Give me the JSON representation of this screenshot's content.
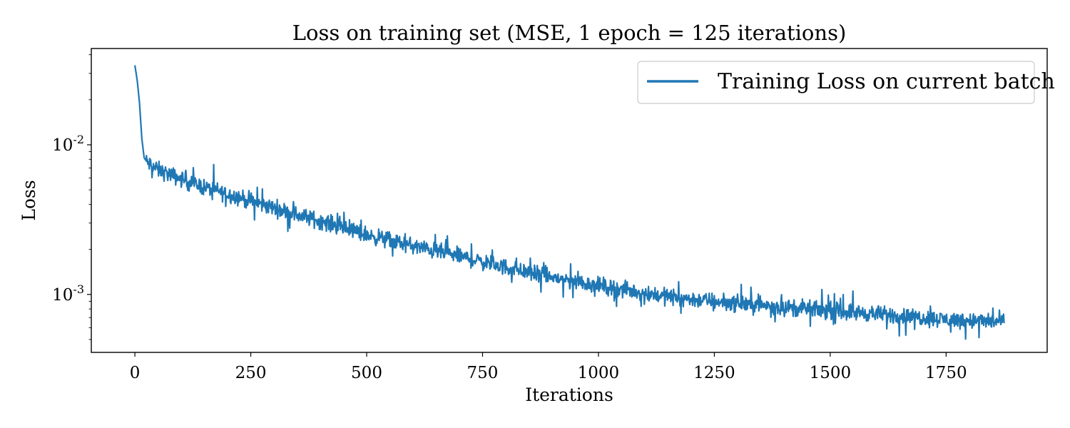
{
  "chart_data": {
    "type": "line",
    "title": "Loss on training set   (MSE, 1 epoch = 125 iterations)",
    "xlabel": "Iterations",
    "ylabel": "Loss",
    "xscale": "linear",
    "yscale": "log",
    "xlim": [
      -94,
      1968
    ],
    "ylim": [
      0.00041,
      0.044
    ],
    "grid": false,
    "legend_position": "top-right",
    "xticks": [
      {
        "value": 0,
        "label": "0"
      },
      {
        "value": 250,
        "label": "250"
      },
      {
        "value": 500,
        "label": "500"
      },
      {
        "value": 750,
        "label": "750"
      },
      {
        "value": 1000,
        "label": "1000"
      },
      {
        "value": 1250,
        "label": "1250"
      },
      {
        "value": 1500,
        "label": "1500"
      },
      {
        "value": 1750,
        "label": "1750"
      }
    ],
    "yticks": [
      {
        "value": 0.01,
        "base": "10",
        "exp": "-2"
      },
      {
        "value": 0.001,
        "base": "10",
        "exp": "-3"
      }
    ],
    "y_minor_ticks": [
      0.0005,
      0.0006,
      0.0007,
      0.0008,
      0.0009,
      0.002,
      0.003,
      0.004,
      0.005,
      0.006,
      0.007,
      0.008,
      0.009,
      0.02,
      0.03,
      0.04
    ],
    "series": [
      {
        "name": "Training Loss on current batch",
        "color": "#1f77b4",
        "x": [
          0,
          5,
          10,
          15,
          20,
          25,
          50,
          100,
          150,
          200,
          250,
          300,
          350,
          400,
          450,
          500,
          550,
          600,
          650,
          700,
          750,
          800,
          850,
          900,
          950,
          1000,
          1050,
          1100,
          1150,
          1200,
          1250,
          1300,
          1350,
          1400,
          1450,
          1500,
          1550,
          1600,
          1650,
          1700,
          1750,
          1800,
          1850,
          1875
        ],
        "y": [
          0.034,
          0.027,
          0.019,
          0.011,
          0.0082,
          0.0077,
          0.0068,
          0.0059,
          0.0052,
          0.0047,
          0.0042,
          0.0038,
          0.0034,
          0.0031,
          0.0028,
          0.0025,
          0.0023,
          0.0021,
          0.00195,
          0.0018,
          0.00165,
          0.00152,
          0.0014,
          0.0013,
          0.00122,
          0.00115,
          0.00108,
          0.00102,
          0.00097,
          0.00093,
          0.0009,
          0.00087,
          0.00085,
          0.00082,
          0.0008,
          0.00078,
          0.00076,
          0.00074,
          0.00072,
          0.0007,
          0.00068,
          0.00067,
          0.00066,
          0.00066
        ],
        "noise_band_log10": 0.08
      }
    ]
  }
}
